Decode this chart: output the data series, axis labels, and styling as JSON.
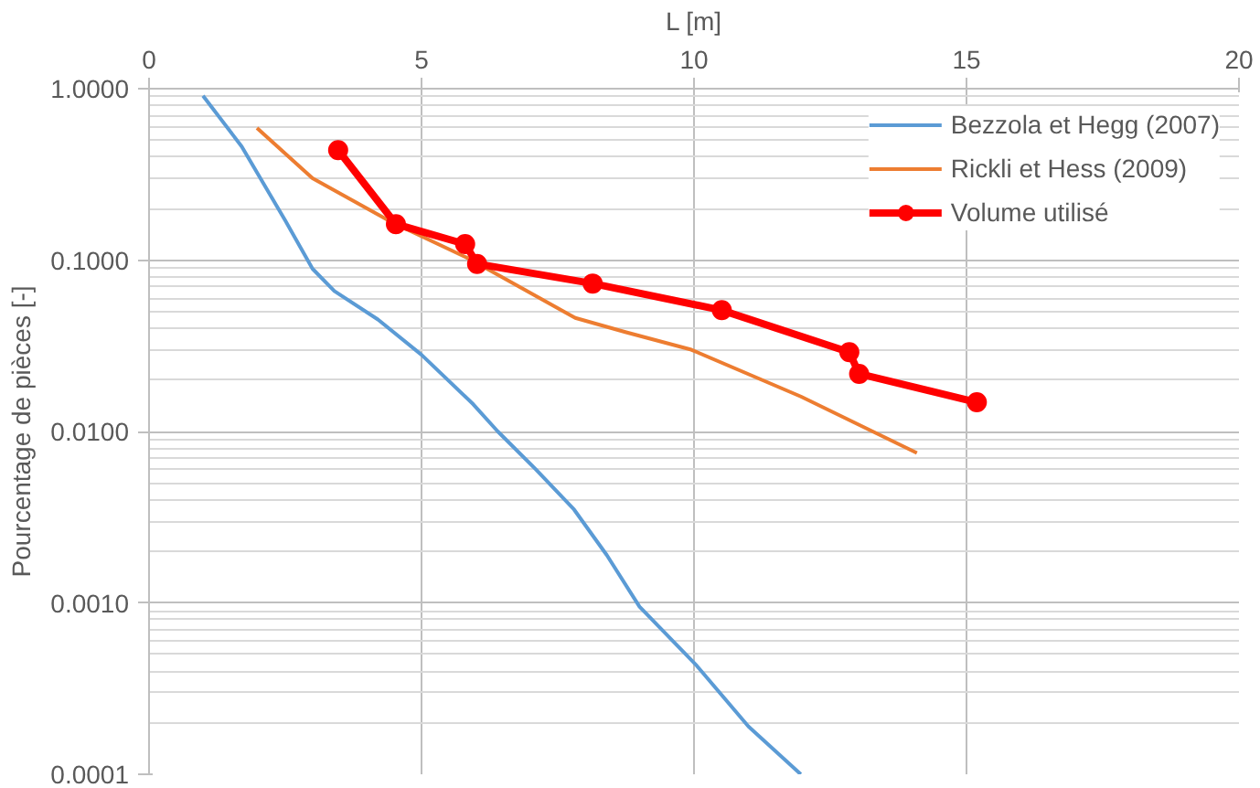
{
  "chart_data": {
    "type": "line",
    "xlabel": "L [m]",
    "ylabel": "Pourcentage de pièces [-]",
    "log": "y",
    "grid": true,
    "legend": "top right",
    "xlim": [
      0,
      20
    ],
    "xticks": [
      0,
      5,
      10,
      15,
      20
    ],
    "ylim": [
      0.0001,
      1
    ],
    "yticks": [
      {
        "value": 0.0001,
        "label": "0.0001"
      },
      {
        "value": 0.001,
        "label": "0.0010"
      },
      {
        "value": 0.01,
        "label": "0.0100"
      },
      {
        "value": 0.1,
        "label": "0.1000"
      },
      {
        "value": 1,
        "label": "1.0000"
      }
    ],
    "series": [
      {
        "name": "Bezzola et Hegg (2007)",
        "color": "#5b9bd5",
        "marker": "none",
        "x": [
          0.99,
          1.7,
          2.5,
          3.0,
          3.4,
          4.2,
          5.0,
          5.95,
          6.4,
          7.1,
          7.8,
          8.4,
          9.0,
          10.05,
          11.0,
          11.96
        ],
        "values": [
          0.91,
          0.46,
          0.17,
          0.089,
          0.066,
          0.045,
          0.028,
          0.0144,
          0.01,
          0.006,
          0.0035,
          0.0019,
          0.00095,
          0.00043,
          0.00019,
          0.0001
        ]
      },
      {
        "name": "Rickli et Hess (2009)",
        "color": "#ed7d31",
        "marker": "none",
        "x": [
          1.98,
          3.0,
          4.46,
          5.84,
          7.82,
          8.74,
          9.95,
          11.96,
          14.09
        ],
        "values": [
          0.59,
          0.3,
          0.166,
          0.103,
          0.046,
          0.038,
          0.03,
          0.016,
          0.0075
        ]
      },
      {
        "name": "Volume utilisé",
        "color": "#ff0000",
        "marker": "circle",
        "x": [
          3.47,
          4.53,
          5.8,
          6.02,
          8.14,
          10.51,
          12.85,
          13.03,
          15.19
        ],
        "values": [
          0.438,
          0.162,
          0.124,
          0.095,
          0.073,
          0.051,
          0.029,
          0.0217,
          0.0148
        ]
      }
    ]
  }
}
